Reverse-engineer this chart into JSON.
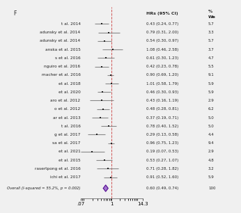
{
  "studies": [
    {
      "label": "t al. 2014",
      "hr": 0.43,
      "lo": 0.24,
      "hi": 0.77,
      "weight": 5.7
    },
    {
      "label": "adunsky et al. 2014",
      "hr": 0.79,
      "lo": 0.31,
      "hi": 2.0,
      "weight": 3.3
    },
    {
      "label": "adunsky et al. 2014",
      "hr": 0.54,
      "lo": 0.3,
      "hi": 0.97,
      "weight": 5.7
    },
    {
      "label": "anska et al. 2015",
      "hr": 1.08,
      "lo": 0.46,
      "hi": 2.58,
      "weight": 3.7
    },
    {
      "label": "s et al. 2016",
      "hr": 0.61,
      "lo": 0.3,
      "hi": 1.23,
      "weight": 4.7
    },
    {
      "label": "nguiro et al. 2016",
      "hr": 0.42,
      "lo": 0.23,
      "hi": 0.78,
      "weight": 5.5
    },
    {
      "label": "macher et al. 2016",
      "hr": 0.9,
      "lo": 0.69,
      "hi": 1.2,
      "weight": 9.1
    },
    {
      "label": "et al. 2018",
      "hr": 1.01,
      "lo": 0.58,
      "hi": 1.79,
      "weight": 5.9
    },
    {
      "label": "et al. 2020",
      "hr": 0.46,
      "lo": 0.3,
      "hi": 0.93,
      "weight": 5.9
    },
    {
      "label": "aro et al. 2012",
      "hr": 0.43,
      "lo": 0.16,
      "hi": 1.19,
      "weight": 2.9
    },
    {
      "label": "o et al. 2012",
      "hr": 0.48,
      "lo": 0.28,
      "hi": 0.81,
      "weight": 6.2
    },
    {
      "label": "ar et al. 2013",
      "hr": 0.37,
      "lo": 0.19,
      "hi": 0.71,
      "weight": 5.0
    },
    {
      "label": "t al. 2016",
      "hr": 0.78,
      "lo": 0.4,
      "hi": 1.52,
      "weight": 5.0
    },
    {
      "label": "g et al. 2017",
      "hr": 0.29,
      "lo": 0.13,
      "hi": 0.58,
      "weight": 4.4
    },
    {
      "label": "sa et al. 2017",
      "hr": 0.96,
      "lo": 0.75,
      "hi": 1.23,
      "weight": 9.4
    },
    {
      "label": "et al. 2021",
      "hr": 0.19,
      "lo": 0.07,
      "hi": 0.53,
      "weight": 2.9
    },
    {
      "label": "et al. 2015",
      "hr": 0.53,
      "lo": 0.27,
      "hi": 1.07,
      "weight": 4.8
    },
    {
      "label": "rasertpong et al. 2016",
      "hr": 0.71,
      "lo": 0.28,
      "hi": 1.82,
      "weight": 3.2
    },
    {
      "label": "ichi et al. 2017",
      "hr": 0.91,
      "lo": 0.52,
      "hi": 1.6,
      "weight": 5.9
    }
  ],
  "overall": {
    "label": "Overall (I-squared = 55.2%, p = 0.002)",
    "hr": 0.6,
    "lo": 0.49,
    "hi": 0.74,
    "weight": 100
  },
  "xmin": 0.07,
  "xmax": 14.3,
  "ci_line_color": "#888888",
  "diamond_facecolor": "#9966CC",
  "diamond_edgecolor": "#4B0082",
  "box_color": "#222222",
  "ref_line_color": "#cc4444",
  "bg_color": "#f0f0f0",
  "label_fontsize": 4.2,
  "hr_fontsize": 4.0,
  "wt_fontsize": 4.0,
  "header_fontsize": 4.5,
  "tick_fontsize": 5.0
}
